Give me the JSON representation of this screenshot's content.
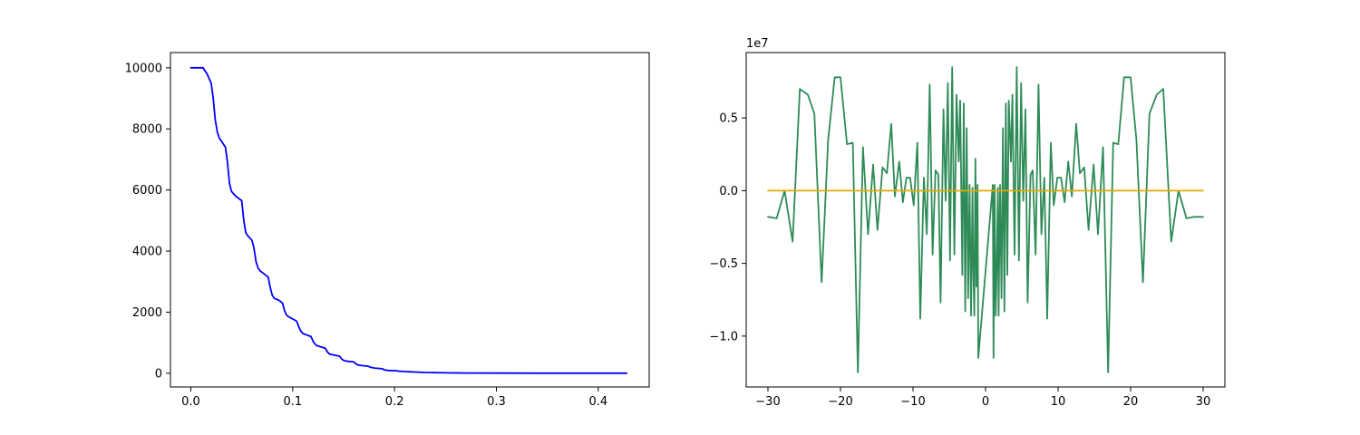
{
  "chart_data": [
    {
      "type": "line",
      "title": "",
      "xlabel": "",
      "ylabel": "",
      "xlim": [
        -0.02,
        0.45
      ],
      "ylim": [
        -450,
        10500
      ],
      "xticks": [
        0.0,
        0.1,
        0.2,
        0.3,
        0.4
      ],
      "xtick_labels": [
        "0.0",
        "0.1",
        "0.2",
        "0.3",
        "0.4"
      ],
      "yticks": [
        0,
        2000,
        4000,
        6000,
        8000,
        10000
      ],
      "ytick_labels": [
        "0",
        "2000",
        "4000",
        "6000",
        "8000",
        "10000"
      ],
      "grid": false,
      "series": [
        {
          "color": "#0000ff",
          "x": [
            0.0,
            0.012,
            0.016,
            0.02,
            0.022,
            0.024,
            0.026,
            0.028,
            0.03,
            0.034,
            0.036,
            0.038,
            0.04,
            0.044,
            0.05,
            0.052,
            0.054,
            0.056,
            0.06,
            0.062,
            0.064,
            0.066,
            0.068,
            0.072,
            0.076,
            0.078,
            0.08,
            0.082,
            0.086,
            0.09,
            0.092,
            0.094,
            0.096,
            0.1,
            0.104,
            0.106,
            0.108,
            0.11,
            0.114,
            0.118,
            0.12,
            0.122,
            0.124,
            0.128,
            0.132,
            0.134,
            0.136,
            0.14,
            0.146,
            0.148,
            0.15,
            0.154,
            0.16,
            0.162,
            0.164,
            0.168,
            0.174,
            0.176,
            0.18,
            0.188,
            0.19,
            0.194,
            0.202,
            0.204,
            0.21,
            0.216,
            0.22,
            0.23,
            0.24,
            0.25,
            0.27,
            0.3,
            0.34,
            0.38,
            0.428
          ],
          "y": [
            10000,
            10000,
            9800,
            9500,
            9000,
            8300,
            7900,
            7700,
            7600,
            7400,
            6900,
            6200,
            5950,
            5800,
            5650,
            5000,
            4600,
            4500,
            4350,
            4100,
            3650,
            3450,
            3350,
            3250,
            3150,
            2800,
            2550,
            2450,
            2400,
            2300,
            2050,
            1900,
            1850,
            1780,
            1700,
            1520,
            1380,
            1300,
            1250,
            1200,
            1050,
            950,
            900,
            860,
            820,
            700,
            630,
            600,
            560,
            470,
            420,
            390,
            370,
            310,
            270,
            250,
            230,
            200,
            170,
            145,
            110,
            90,
            80,
            70,
            55,
            45,
            40,
            25,
            18,
            12,
            7,
            4,
            2,
            1,
            0
          ]
        }
      ]
    },
    {
      "type": "line",
      "title": "",
      "xlabel": "",
      "ylabel": "",
      "y_offset_label": "1e7",
      "xlim": [
        -33,
        33
      ],
      "ylim": [
        -1.35,
        0.95
      ],
      "xticks": [
        -30,
        -20,
        -10,
        0,
        10,
        20,
        30
      ],
      "xtick_labels": [
        "−30",
        "−20",
        "−10",
        "0",
        "10",
        "20",
        "30"
      ],
      "yticks": [
        -1.0,
        -0.5,
        0.0,
        0.5
      ],
      "ytick_labels": [
        "−1.0",
        "−0.5",
        "0.0",
        "0.5"
      ],
      "grid": false,
      "series": [
        {
          "color": "#2e8b57",
          "x": [
            -30,
            -28.8,
            -27.7,
            -26.6,
            -25.6,
            -24.5,
            -23.6,
            -22.6,
            -21.7,
            -20.8,
            -20.0,
            -19.1,
            -18.3,
            -17.6,
            -16.9,
            -16.2,
            -15.5,
            -14.9,
            -14.2,
            -13.6,
            -13.0,
            -12.5,
            -11.9,
            -11.4,
            -10.9,
            -10.4,
            -9.9,
            -9.4,
            -9.0,
            -8.5,
            -8.1,
            -7.7,
            -7.3,
            -6.9,
            -6.5,
            -6.2,
            -5.8,
            -5.5,
            -5.2,
            -4.9,
            -4.6,
            -4.3,
            -4.0,
            -3.7,
            -3.5,
            -3.2,
            -3.0,
            -2.8,
            -2.6,
            -2.4,
            -2.2,
            -2.0,
            -1.8,
            -1.7,
            -1.55,
            -1.4,
            -1.25,
            -1.1,
            -1.0,
            1.0,
            1.1,
            1.25,
            1.4,
            1.55,
            1.7,
            1.8,
            2.0,
            2.2,
            2.4,
            2.6,
            2.8,
            3.0,
            3.2,
            3.5,
            3.7,
            4.0,
            4.3,
            4.6,
            4.9,
            5.2,
            5.5,
            5.8,
            6.2,
            6.5,
            6.9,
            7.3,
            7.7,
            8.1,
            8.5,
            9.0,
            9.4,
            9.9,
            10.4,
            10.9,
            11.4,
            11.9,
            12.5,
            13.0,
            13.6,
            14.2,
            14.9,
            15.5,
            16.2,
            16.9,
            17.6,
            18.3,
            19.1,
            20.0,
            20.8,
            21.7,
            22.6,
            23.6,
            24.5,
            25.6,
            26.6,
            27.7,
            28.8,
            30
          ],
          "y": [
            -0.18,
            -0.19,
            0.0,
            -0.35,
            0.7,
            0.66,
            0.53,
            -0.63,
            0.35,
            0.78,
            0.78,
            0.32,
            0.33,
            -1.25,
            0.3,
            -0.3,
            0.18,
            -0.27,
            0.16,
            0.12,
            0.46,
            -0.04,
            0.2,
            -0.08,
            0.09,
            0.09,
            -0.1,
            0.33,
            -0.88,
            0.09,
            -0.3,
            0.73,
            -0.44,
            0.14,
            0.11,
            -0.77,
            0.56,
            -0.07,
            0.74,
            -0.48,
            0.85,
            -0.44,
            0.66,
            0.2,
            0.62,
            -0.58,
            0.6,
            -0.83,
            0.43,
            -0.74,
            0.04,
            -0.86,
            0.02,
            -0.51,
            -0.86,
            0.22,
            -0.66,
            0.04,
            -1.15,
            0.04,
            -1.15,
            0.04,
            -0.86,
            -0.51,
            0.02,
            -0.86,
            0.04,
            -0.74,
            0.43,
            -0.83,
            0.6,
            -0.58,
            0.62,
            0.2,
            0.66,
            -0.44,
            0.85,
            -0.48,
            0.74,
            -0.07,
            0.56,
            -0.77,
            0.11,
            0.14,
            -0.44,
            0.73,
            -0.3,
            0.09,
            -0.88,
            0.33,
            -0.1,
            0.09,
            0.09,
            -0.08,
            0.2,
            -0.04,
            0.46,
            0.12,
            0.16,
            -0.27,
            0.18,
            -0.3,
            0.3,
            -1.25,
            0.33,
            0.32,
            0.78,
            0.78,
            0.35,
            -0.63,
            0.53,
            0.66,
            0.7,
            -0.35,
            0.0,
            -0.19,
            -0.18,
            -0.18
          ]
        },
        {
          "color": "#e6a800",
          "x": [
            -30,
            30
          ],
          "y": [
            0.0,
            0.0
          ]
        }
      ]
    }
  ]
}
